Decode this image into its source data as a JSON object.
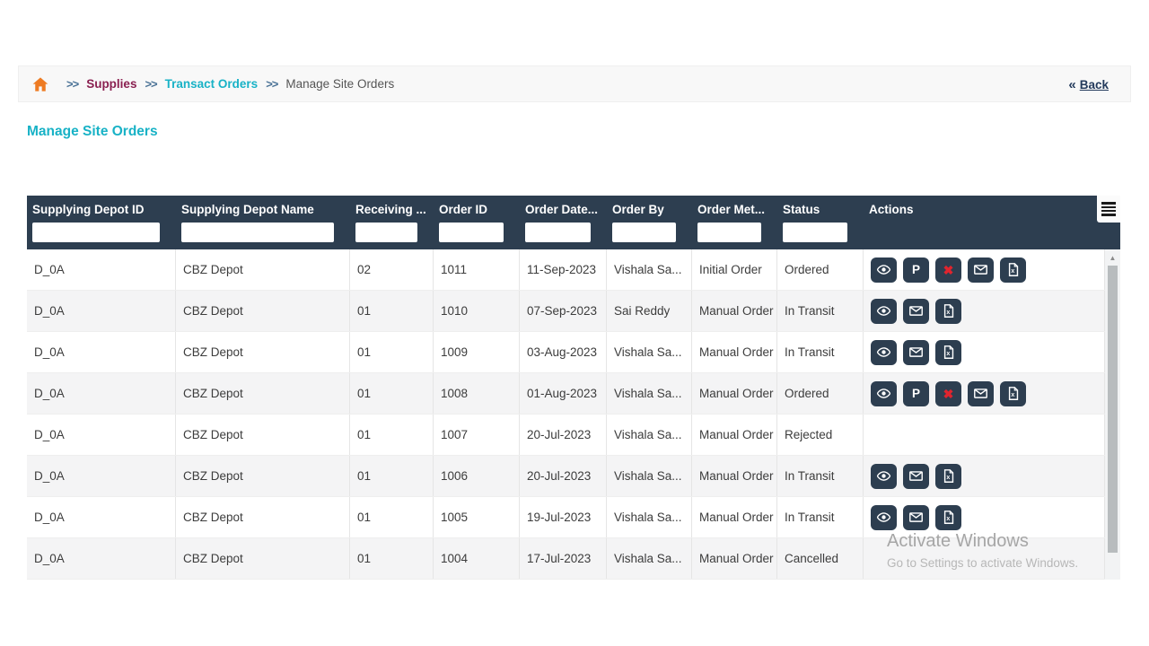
{
  "breadcrumb": {
    "separator": ">>",
    "items": [
      {
        "label": "Supplies"
      },
      {
        "label": "Transact Orders"
      },
      {
        "label": "Manage Site Orders"
      }
    ],
    "back_chevrons": "«",
    "back_label": "Back"
  },
  "page": {
    "title": "Manage Site Orders"
  },
  "icons": {
    "home": "home-icon",
    "column_menu": "hamburger-icon",
    "actions": {
      "view": "eye",
      "p": "letter-P",
      "cancel": "red-x",
      "mail": "envelope",
      "excel": "excel-file"
    }
  },
  "colors": {
    "header_bg": "#2d3e50",
    "accent_teal": "#18b2c6",
    "breadcrumb_maroon": "#8a2050",
    "home_orange": "#ee7b23",
    "cancel_red": "#e0242e",
    "row_alt": "#f4f4f5"
  },
  "table": {
    "columns": [
      {
        "key": "supplying_depot_id",
        "label": "Supplying Depot ID",
        "filter": true
      },
      {
        "key": "supplying_depot_name",
        "label": "Supplying Depot Name",
        "filter": true
      },
      {
        "key": "receiving",
        "label": "Receiving ...",
        "filter": true
      },
      {
        "key": "order_id",
        "label": "Order ID",
        "filter": true
      },
      {
        "key": "order_date",
        "label": "Order Date...",
        "filter": true
      },
      {
        "key": "order_by",
        "label": "Order By",
        "filter": true
      },
      {
        "key": "order_method",
        "label": "Order Met...",
        "filter": true
      },
      {
        "key": "status",
        "label": "Status",
        "filter": true
      },
      {
        "key": "actions",
        "label": "Actions",
        "filter": false
      }
    ],
    "rows": [
      {
        "supplying_depot_id": "D_0A",
        "supplying_depot_name": "CBZ Depot",
        "receiving": "02",
        "order_id": "1011",
        "order_date": "11-Sep-2023",
        "order_by": "Vishala Sa...",
        "order_method": "Initial Order",
        "status": "Ordered",
        "actions": [
          "view",
          "p",
          "cancel",
          "mail",
          "excel"
        ]
      },
      {
        "supplying_depot_id": "D_0A",
        "supplying_depot_name": "CBZ Depot",
        "receiving": "01",
        "order_id": "1010",
        "order_date": "07-Sep-2023",
        "order_by": "Sai Reddy",
        "order_method": "Manual Order",
        "status": "In Transit",
        "actions": [
          "view",
          "mail",
          "excel"
        ]
      },
      {
        "supplying_depot_id": "D_0A",
        "supplying_depot_name": "CBZ Depot",
        "receiving": "01",
        "order_id": "1009",
        "order_date": "03-Aug-2023",
        "order_by": "Vishala Sa...",
        "order_method": "Manual Order",
        "status": "In Transit",
        "actions": [
          "view",
          "mail",
          "excel"
        ]
      },
      {
        "supplying_depot_id": "D_0A",
        "supplying_depot_name": "CBZ Depot",
        "receiving": "01",
        "order_id": "1008",
        "order_date": "01-Aug-2023",
        "order_by": "Vishala Sa...",
        "order_method": "Manual Order",
        "status": "Ordered",
        "actions": [
          "view",
          "p",
          "cancel",
          "mail",
          "excel"
        ]
      },
      {
        "supplying_depot_id": "D_0A",
        "supplying_depot_name": "CBZ Depot",
        "receiving": "01",
        "order_id": "1007",
        "order_date": "20-Jul-2023",
        "order_by": "Vishala Sa...",
        "order_method": "Manual Order",
        "status": "Rejected",
        "actions": []
      },
      {
        "supplying_depot_id": "D_0A",
        "supplying_depot_name": "CBZ Depot",
        "receiving": "01",
        "order_id": "1006",
        "order_date": "20-Jul-2023",
        "order_by": "Vishala Sa...",
        "order_method": "Manual Order",
        "status": "In Transit",
        "actions": [
          "view",
          "mail",
          "excel"
        ]
      },
      {
        "supplying_depot_id": "D_0A",
        "supplying_depot_name": "CBZ Depot",
        "receiving": "01",
        "order_id": "1005",
        "order_date": "19-Jul-2023",
        "order_by": "Vishala Sa...",
        "order_method": "Manual Order",
        "status": "In Transit",
        "actions": [
          "view",
          "mail",
          "excel"
        ]
      },
      {
        "supplying_depot_id": "D_0A",
        "supplying_depot_name": "CBZ Depot",
        "receiving": "01",
        "order_id": "1004",
        "order_date": "17-Jul-2023",
        "order_by": "Vishala Sa...",
        "order_method": "Manual Order",
        "status": "Cancelled",
        "actions": []
      }
    ]
  },
  "scrollbar": {
    "up_arrow": "▲"
  },
  "watermark": {
    "line1": "Activate Windows",
    "line2": "Go to Settings to activate Windows."
  }
}
